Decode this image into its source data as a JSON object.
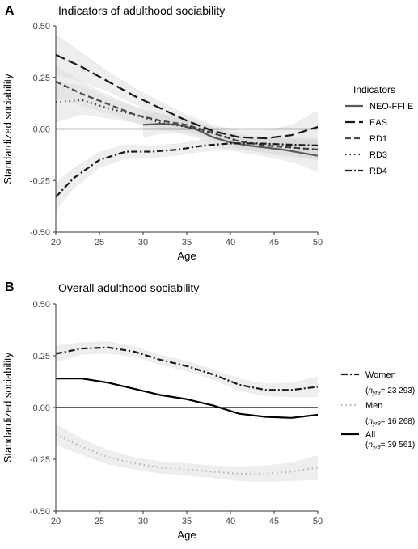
{
  "chart_data": [
    {
      "type": "line",
      "panel_label": "A",
      "title": "Indicators of adulthood sociability",
      "xlabel": "Age",
      "ylabel": "Standardized sociability",
      "xlim": [
        20,
        50
      ],
      "ylim": [
        -0.5,
        0.5
      ],
      "x_ticks": [
        "20",
        "25",
        "30",
        "35",
        "40",
        "45",
        "50"
      ],
      "y_ticks": [
        "-0.50",
        "-0.25",
        "0.00",
        "0.25",
        "0.50"
      ],
      "reference_line": 0,
      "grid": false,
      "legend": {
        "position": "right",
        "title": "Indicators",
        "entries": [
          "NEO-FFI E",
          "EAS",
          "RD1",
          "RD3",
          "RD4"
        ]
      },
      "series": [
        {
          "name": "NEO-FFI E",
          "line_style": "solid",
          "color": "#5a5a5a",
          "x": [
            30,
            32,
            34,
            36,
            38,
            40,
            42,
            44,
            46,
            48,
            50
          ],
          "y": [
            0.02,
            0.025,
            0.02,
            0.0,
            -0.04,
            -0.065,
            -0.08,
            -0.09,
            -0.1,
            -0.115,
            -0.13
          ],
          "band": [
            0.06,
            0.05,
            0.04,
            0.04,
            0.04,
            0.04,
            0.04,
            0.045,
            0.05,
            0.06,
            0.08
          ]
        },
        {
          "name": "EAS",
          "line_style": "longdash",
          "color": "#1a1a1a",
          "x": [
            20,
            23,
            26,
            29,
            32,
            35,
            38,
            41,
            44,
            47,
            50
          ],
          "y": [
            0.36,
            0.3,
            0.23,
            0.16,
            0.1,
            0.04,
            -0.01,
            -0.04,
            -0.045,
            -0.03,
            0.01
          ],
          "band": [
            0.1,
            0.07,
            0.05,
            0.04,
            0.035,
            0.03,
            0.03,
            0.035,
            0.04,
            0.05,
            0.08
          ]
        },
        {
          "name": "RD1",
          "line_style": "dash",
          "color": "#4a4a4a",
          "x": [
            20,
            23,
            26,
            29,
            32,
            35,
            38,
            41,
            44,
            47,
            50
          ],
          "y": [
            0.23,
            0.17,
            0.12,
            0.07,
            0.04,
            0.02,
            -0.02,
            -0.06,
            -0.08,
            -0.09,
            -0.1
          ],
          "band": [
            0.08,
            0.06,
            0.045,
            0.04,
            0.035,
            0.03,
            0.03,
            0.035,
            0.035,
            0.04,
            0.05
          ]
        },
        {
          "name": "RD3",
          "line_style": "dotted",
          "color": "#333333",
          "x": [
            20,
            23,
            26,
            29,
            32,
            35,
            38,
            41,
            44,
            47,
            50
          ],
          "y": [
            0.13,
            0.14,
            0.1,
            0.07,
            0.03,
            0.01,
            -0.02,
            -0.06,
            -0.08,
            -0.09,
            -0.1
          ],
          "band": [
            0.1,
            0.07,
            0.05,
            0.04,
            0.035,
            0.03,
            0.03,
            0.035,
            0.04,
            0.045,
            0.05
          ]
        },
        {
          "name": "RD4",
          "line_style": "dashdot",
          "color": "#1a1a1a",
          "x": [
            20,
            22,
            25,
            28,
            31,
            34,
            37,
            40,
            43,
            46,
            50
          ],
          "y": [
            -0.33,
            -0.24,
            -0.15,
            -0.11,
            -0.11,
            -0.1,
            -0.08,
            -0.07,
            -0.07,
            -0.075,
            -0.08
          ],
          "band": [
            0.07,
            0.05,
            0.04,
            0.035,
            0.03,
            0.03,
            0.03,
            0.03,
            0.03,
            0.035,
            0.04
          ]
        }
      ]
    },
    {
      "type": "line",
      "panel_label": "B",
      "title": "Overall adulthood sociability",
      "xlabel": "Age",
      "ylabel": "Standardized sociability",
      "xlim": [
        20,
        50
      ],
      "ylim": [
        -0.5,
        0.5
      ],
      "x_ticks": [
        "20",
        "25",
        "30",
        "35",
        "40",
        "45",
        "50"
      ],
      "y_ticks": [
        "-0.50",
        "-0.25",
        "0.00",
        "0.25",
        "0.50"
      ],
      "reference_line": 0,
      "grid": false,
      "legend": {
        "position": "right",
        "entries": [
          "Women",
          "Men",
          "All"
        ]
      },
      "series": [
        {
          "name": "Women",
          "n_label": "= 23 293)",
          "line_style": "dashdot",
          "color": "#1a1a1a",
          "x": [
            20,
            23,
            26,
            29,
            32,
            35,
            38,
            41,
            44,
            47,
            50
          ],
          "y": [
            0.26,
            0.285,
            0.29,
            0.27,
            0.23,
            0.2,
            0.16,
            0.11,
            0.085,
            0.085,
            0.1
          ],
          "band": [
            0.04,
            0.03,
            0.03,
            0.025,
            0.025,
            0.025,
            0.025,
            0.03,
            0.03,
            0.035,
            0.05
          ]
        },
        {
          "name": "Men",
          "n_label": "= 16 268)",
          "line_style": "dotted",
          "color": "#b8b8b8",
          "x": [
            20,
            23,
            26,
            29,
            32,
            35,
            38,
            41,
            44,
            47,
            50
          ],
          "y": [
            -0.13,
            -0.19,
            -0.24,
            -0.27,
            -0.29,
            -0.3,
            -0.31,
            -0.32,
            -0.32,
            -0.31,
            -0.29
          ],
          "band": [
            0.05,
            0.04,
            0.035,
            0.03,
            0.03,
            0.03,
            0.03,
            0.035,
            0.04,
            0.045,
            0.06
          ]
        },
        {
          "name": "All",
          "n_label": "= 39 561)",
          "line_style": "solid",
          "color": "#000000",
          "x": [
            20,
            23,
            26,
            29,
            32,
            35,
            38,
            41,
            44,
            47,
            50
          ],
          "y": [
            0.14,
            0.14,
            0.12,
            0.09,
            0.06,
            0.04,
            0.01,
            -0.03,
            -0.045,
            -0.05,
            -0.035
          ],
          "band": []
        }
      ]
    }
  ]
}
